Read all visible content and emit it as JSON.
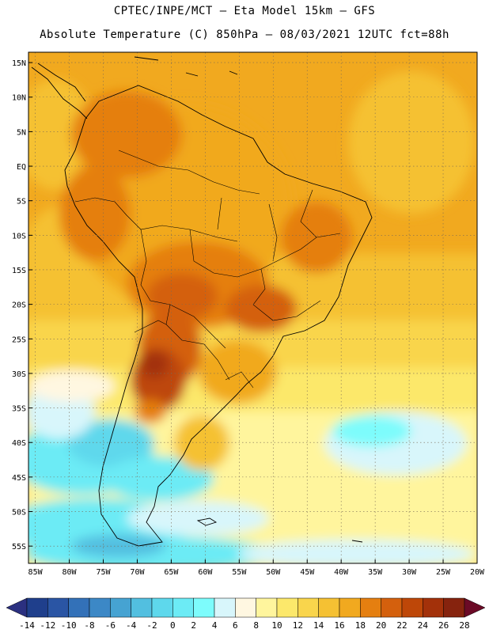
{
  "header": {
    "line1": "CPTEC/INPE/MCT –  Eta Model 15km – GFS",
    "line2": "Absolute Temperature (C) 850hPa – 08/03/2021 12UTC fct=88h"
  },
  "map": {
    "lat_labels": [
      "15N",
      "10N",
      "5N",
      "EQ",
      "5S",
      "10S",
      "15S",
      "20S",
      "25S",
      "30S",
      "35S",
      "40S",
      "45S",
      "50S",
      "55S"
    ],
    "lat_values": [
      15,
      10,
      5,
      0,
      -5,
      -10,
      -15,
      -20,
      -25,
      -30,
      -35,
      -40,
      -45,
      -50,
      -55
    ],
    "lon_labels": [
      "85W",
      "80W",
      "75W",
      "70W",
      "65W",
      "60W",
      "55W",
      "50W",
      "45W",
      "40W",
      "35W",
      "30W",
      "25W",
      "20W"
    ],
    "lon_values": [
      -85,
      -80,
      -75,
      -70,
      -65,
      -60,
      -55,
      -50,
      -45,
      -40,
      -35,
      -30,
      -25,
      -20
    ],
    "lon_range": [
      -86,
      -20
    ],
    "lat_range": [
      -57.5,
      16.5
    ]
  },
  "colorbar": {
    "labels": [
      "-14",
      "-12",
      "-10",
      "-8",
      "-6",
      "-4",
      "-2",
      "0",
      "2",
      "4",
      "6",
      "8",
      "10",
      "12",
      "14",
      "16",
      "18",
      "20",
      "22",
      "24",
      "26",
      "28"
    ],
    "colors": [
      "#1f3f8c",
      "#2a55a4",
      "#3371b8",
      "#3c88c6",
      "#46a3d2",
      "#52bfe0",
      "#5ed8ec",
      "#6cebf5",
      "#7dfcfc",
      "#d8f6fb",
      "#fff7e1",
      "#fff59d",
      "#fce86b",
      "#f9d54c",
      "#f5c133",
      "#f1a91f",
      "#e57f10",
      "#d4600d",
      "#be4708",
      "#a3310a",
      "#86230e"
    ],
    "low_color": "#2b3080",
    "high_color": "#6b0a26"
  }
}
